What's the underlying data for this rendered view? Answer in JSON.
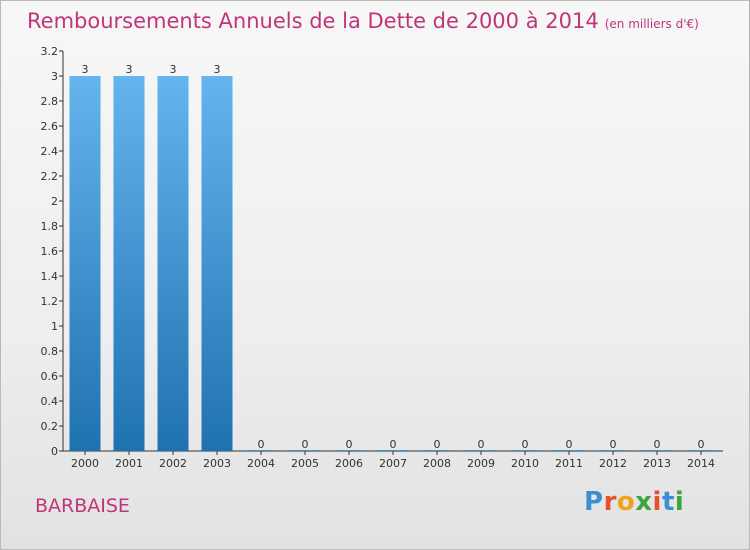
{
  "title": "Remboursements Annuels de la Dette de 2000 à 2014",
  "subtitle": "(en milliers d'€)",
  "location": "BARBAISE",
  "logo": {
    "text": "Proxiti",
    "letter_colors": [
      "#3a8fd4",
      "#e3522c",
      "#f0a21a",
      "#3ca63c",
      "#e3522c",
      "#3a8fd4",
      "#3ca63c"
    ]
  },
  "colors": {
    "title": "#c0357a",
    "bar_light": "#64b4ee",
    "bar_dark": "#1f72b0",
    "axis": "#333333"
  },
  "chart_data": {
    "type": "bar",
    "categories": [
      "2000",
      "2001",
      "2002",
      "2003",
      "2004",
      "2005",
      "2006",
      "2007",
      "2008",
      "2009",
      "2010",
      "2011",
      "2012",
      "2013",
      "2014"
    ],
    "values": [
      3,
      3,
      3,
      3,
      0,
      0,
      0,
      0,
      0,
      0,
      0,
      0,
      0,
      0,
      0
    ],
    "data_labels": [
      "3",
      "3",
      "3",
      "3",
      "0",
      "0",
      "0",
      "0",
      "0",
      "0",
      "0",
      "0",
      "0",
      "0",
      "0"
    ],
    "y_ticks": [
      0,
      0.2,
      0.4,
      0.6,
      0.8,
      1,
      1.2,
      1.4,
      1.6,
      1.8,
      2,
      2.2,
      2.4,
      2.6,
      2.8,
      3,
      3.2
    ],
    "y_tick_labels": [
      "0",
      "0.2",
      "0.4",
      "0.6",
      "0.8",
      "1",
      "1.2",
      "1.4",
      "1.6",
      "1.8",
      "2",
      "2.2",
      "2.4",
      "2.6",
      "2.8",
      "3",
      "3.2"
    ],
    "ylim": [
      0,
      3.2
    ],
    "grid": false,
    "legend": "none"
  }
}
